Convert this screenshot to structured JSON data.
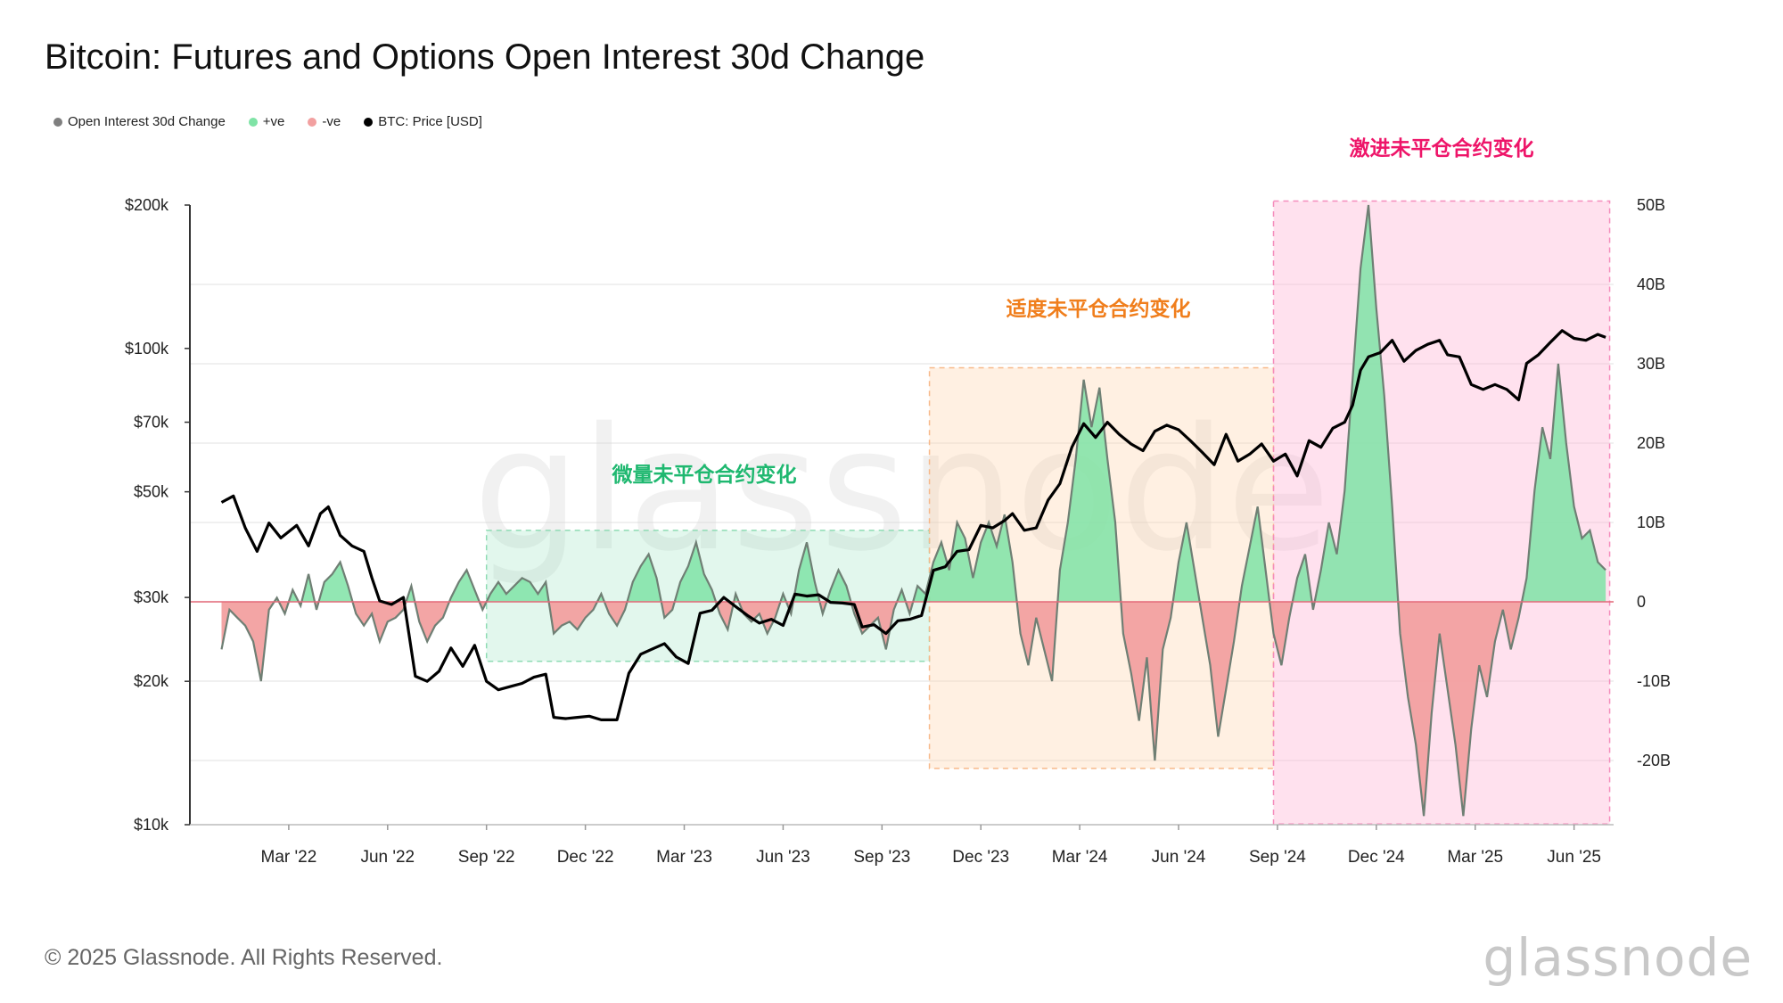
{
  "title": "Bitcoin: Futures and Options Open Interest 30d Change",
  "legend": [
    {
      "label": "Open Interest 30d Change",
      "color": "#7f7f7f"
    },
    {
      "label": "+ve",
      "color": "#7fe3a6"
    },
    {
      "label": "-ve",
      "color": "#f2a0a0"
    },
    {
      "label": "BTC: Price [USD]",
      "color": "#000000"
    }
  ],
  "footer": "© 2025 Glassnode. All Rights Reserved.",
  "brand": "glassnode",
  "watermark": "glassnode",
  "chart_data": {
    "type": "area",
    "x_ticks": [
      "Mar '22",
      "Jun '22",
      "Sep '22",
      "Dec '22",
      "Mar '23",
      "Jun '23",
      "Sep '23",
      "Dec '23",
      "Mar '24",
      "Jun '24",
      "Sep '24",
      "Dec '24",
      "Mar '25",
      "Jun '25"
    ],
    "x_range": [
      2021.92,
      2025.52
    ],
    "left_axis": {
      "label": "BTC: Price [USD]",
      "scale": "log",
      "range": [
        10000,
        200000
      ],
      "ticks": [
        {
          "v": 10000,
          "t": "$10k"
        },
        {
          "v": 20000,
          "t": "$20k"
        },
        {
          "v": 30000,
          "t": "$30k"
        },
        {
          "v": 50000,
          "t": "$50k"
        },
        {
          "v": 70000,
          "t": "$70k"
        },
        {
          "v": 100000,
          "t": "$100k"
        },
        {
          "v": 200000,
          "t": "$200k"
        }
      ]
    },
    "right_axis": {
      "label": "Open Interest 30d Change",
      "range": [
        -28000000000,
        50000000000
      ],
      "ticks": [
        {
          "v": -20000000000,
          "t": "-20B"
        },
        {
          "v": -10000000000,
          "t": "-10B"
        },
        {
          "v": 0,
          "t": "0"
        },
        {
          "v": 10000000000,
          "t": "10B"
        },
        {
          "v": 20000000000,
          "t": "20B"
        },
        {
          "v": 30000000000,
          "t": "30B"
        },
        {
          "v": 40000000000,
          "t": "40B"
        },
        {
          "v": 50000000000,
          "t": "50B"
        }
      ]
    },
    "regions": [
      {
        "label": "微量未平仓合约变化",
        "x0": 2022.67,
        "x1": 2023.79,
        "y0": 9000000000,
        "y1": -7500000000,
        "fill": "rgba(140,225,185,0.25)",
        "stroke": "#8fdcb4",
        "text_color": "#1fb870"
      },
      {
        "label": "适度未平仓合约变化",
        "x0": 2023.79,
        "x1": 2024.66,
        "y0": 29500000000,
        "y1": -21000000000,
        "fill": "rgba(255,205,160,0.30)",
        "stroke": "#f7b98a",
        "text_color": "#f07e1c"
      },
      {
        "label": "激进未平仓合约变化",
        "x0": 2024.66,
        "x1": 2025.51,
        "y0": 50500000000,
        "y1": -28000000000,
        "fill": "rgba(255,175,210,0.38)",
        "stroke": "#f58cbc",
        "text_color": "#ee1569"
      }
    ],
    "btc_price": [
      [
        2022.0,
        47500
      ],
      [
        2022.03,
        49000
      ],
      [
        2022.06,
        42000
      ],
      [
        2022.09,
        37500
      ],
      [
        2022.12,
        43000
      ],
      [
        2022.15,
        40000
      ],
      [
        2022.19,
        42500
      ],
      [
        2022.22,
        38500
      ],
      [
        2022.25,
        45000
      ],
      [
        2022.27,
        46500
      ],
      [
        2022.3,
        40500
      ],
      [
        2022.33,
        38500
      ],
      [
        2022.36,
        37500
      ],
      [
        2022.38,
        33000
      ],
      [
        2022.4,
        29500
      ],
      [
        2022.43,
        29000
      ],
      [
        2022.46,
        30000
      ],
      [
        2022.49,
        20500
      ],
      [
        2022.52,
        20000
      ],
      [
        2022.55,
        21000
      ],
      [
        2022.58,
        23500
      ],
      [
        2022.61,
        21500
      ],
      [
        2022.64,
        23800
      ],
      [
        2022.67,
        20000
      ],
      [
        2022.7,
        19200
      ],
      [
        2022.73,
        19500
      ],
      [
        2022.76,
        19800
      ],
      [
        2022.79,
        20400
      ],
      [
        2022.82,
        20700
      ],
      [
        2022.84,
        16800
      ],
      [
        2022.87,
        16700
      ],
      [
        2022.9,
        16800
      ],
      [
        2022.93,
        16900
      ],
      [
        2022.96,
        16600
      ],
      [
        2023.0,
        16600
      ],
      [
        2023.03,
        20800
      ],
      [
        2023.06,
        22800
      ],
      [
        2023.09,
        23400
      ],
      [
        2023.12,
        24000
      ],
      [
        2023.15,
        22500
      ],
      [
        2023.18,
        21800
      ],
      [
        2023.21,
        27800
      ],
      [
        2023.24,
        28200
      ],
      [
        2023.27,
        30000
      ],
      [
        2023.3,
        28700
      ],
      [
        2023.33,
        27500
      ],
      [
        2023.36,
        26500
      ],
      [
        2023.39,
        27000
      ],
      [
        2023.42,
        26200
      ],
      [
        2023.45,
        30500
      ],
      [
        2023.48,
        30200
      ],
      [
        2023.51,
        30400
      ],
      [
        2023.54,
        29300
      ],
      [
        2023.57,
        29200
      ],
      [
        2023.6,
        29000
      ],
      [
        2023.62,
        26000
      ],
      [
        2023.65,
        26300
      ],
      [
        2023.68,
        25200
      ],
      [
        2023.71,
        26800
      ],
      [
        2023.74,
        27000
      ],
      [
        2023.77,
        27500
      ],
      [
        2023.8,
        34200
      ],
      [
        2023.83,
        34800
      ],
      [
        2023.86,
        37500
      ],
      [
        2023.89,
        37800
      ],
      [
        2023.92,
        42500
      ],
      [
        2023.95,
        42000
      ],
      [
        2023.98,
        43500
      ],
      [
        2024.0,
        45000
      ],
      [
        2024.03,
        41500
      ],
      [
        2024.06,
        42000
      ],
      [
        2024.09,
        48000
      ],
      [
        2024.12,
        52000
      ],
      [
        2024.15,
        62000
      ],
      [
        2024.18,
        69500
      ],
      [
        2024.21,
        65000
      ],
      [
        2024.24,
        70000
      ],
      [
        2024.27,
        66000
      ],
      [
        2024.3,
        63000
      ],
      [
        2024.33,
        61000
      ],
      [
        2024.36,
        67000
      ],
      [
        2024.39,
        69000
      ],
      [
        2024.42,
        67500
      ],
      [
        2024.45,
        64000
      ],
      [
        2024.48,
        60500
      ],
      [
        2024.51,
        57000
      ],
      [
        2024.54,
        66000
      ],
      [
        2024.57,
        58000
      ],
      [
        2024.6,
        60000
      ],
      [
        2024.63,
        63000
      ],
      [
        2024.66,
        58000
      ],
      [
        2024.69,
        60000
      ],
      [
        2024.72,
        54000
      ],
      [
        2024.75,
        64000
      ],
      [
        2024.78,
        62000
      ],
      [
        2024.81,
        68000
      ],
      [
        2024.84,
        70000
      ],
      [
        2024.86,
        76000
      ],
      [
        2024.88,
        90000
      ],
      [
        2024.9,
        96000
      ],
      [
        2024.93,
        98000
      ],
      [
        2024.96,
        104000
      ],
      [
        2024.99,
        94000
      ],
      [
        2025.02,
        99000
      ],
      [
        2025.05,
        102000
      ],
      [
        2025.08,
        104000
      ],
      [
        2025.1,
        97000
      ],
      [
        2025.13,
        96000
      ],
      [
        2025.16,
        84000
      ],
      [
        2025.19,
        82000
      ],
      [
        2025.22,
        84000
      ],
      [
        2025.25,
        82000
      ],
      [
        2025.28,
        78000
      ],
      [
        2025.3,
        93000
      ],
      [
        2025.33,
        97000
      ],
      [
        2025.36,
        103000
      ],
      [
        2025.39,
        109000
      ],
      [
        2025.42,
        105000
      ],
      [
        2025.45,
        104000
      ],
      [
        2025.48,
        107000
      ],
      [
        2025.5,
        105500
      ]
    ],
    "oi_change": [
      [
        2022.0,
        -6000000000
      ],
      [
        2022.02,
        -1000000000
      ],
      [
        2022.04,
        -2000000000
      ],
      [
        2022.06,
        -3000000000
      ],
      [
        2022.08,
        -5000000000
      ],
      [
        2022.1,
        -10000000000
      ],
      [
        2022.12,
        -1000000000
      ],
      [
        2022.14,
        500000000
      ],
      [
        2022.16,
        -1500000000
      ],
      [
        2022.18,
        1500000000
      ],
      [
        2022.2,
        -500000000
      ],
      [
        2022.22,
        3500000000
      ],
      [
        2022.24,
        -1000000000
      ],
      [
        2022.26,
        2500000000
      ],
      [
        2022.28,
        3500000000
      ],
      [
        2022.3,
        5000000000
      ],
      [
        2022.32,
        2000000000
      ],
      [
        2022.34,
        -1500000000
      ],
      [
        2022.36,
        -3000000000
      ],
      [
        2022.38,
        -1500000000
      ],
      [
        2022.4,
        -5000000000
      ],
      [
        2022.42,
        -2500000000
      ],
      [
        2022.44,
        -2000000000
      ],
      [
        2022.46,
        -1000000000
      ],
      [
        2022.48,
        2000000000
      ],
      [
        2022.5,
        -2500000000
      ],
      [
        2022.52,
        -5000000000
      ],
      [
        2022.54,
        -3000000000
      ],
      [
        2022.56,
        -2000000000
      ],
      [
        2022.58,
        500000000
      ],
      [
        2022.6,
        2500000000
      ],
      [
        2022.62,
        4000000000
      ],
      [
        2022.64,
        1500000000
      ],
      [
        2022.66,
        -1000000000
      ],
      [
        2022.68,
        1000000000
      ],
      [
        2022.7,
        2500000000
      ],
      [
        2022.72,
        1000000000
      ],
      [
        2022.74,
        2000000000
      ],
      [
        2022.76,
        3000000000
      ],
      [
        2022.78,
        2500000000
      ],
      [
        2022.8,
        1000000000
      ],
      [
        2022.82,
        2500000000
      ],
      [
        2022.84,
        -4000000000
      ],
      [
        2022.86,
        -3000000000
      ],
      [
        2022.88,
        -2500000000
      ],
      [
        2022.9,
        -3500000000
      ],
      [
        2022.92,
        -2000000000
      ],
      [
        2022.94,
        -1000000000
      ],
      [
        2022.96,
        1000000000
      ],
      [
        2022.98,
        -1500000000
      ],
      [
        2023.0,
        -3000000000
      ],
      [
        2023.02,
        -1000000000
      ],
      [
        2023.04,
        2500000000
      ],
      [
        2023.06,
        4500000000
      ],
      [
        2023.08,
        6000000000
      ],
      [
        2023.1,
        3000000000
      ],
      [
        2023.12,
        -2000000000
      ],
      [
        2023.14,
        -1000000000
      ],
      [
        2023.16,
        2500000000
      ],
      [
        2023.18,
        4500000000
      ],
      [
        2023.2,
        7500000000
      ],
      [
        2023.22,
        3500000000
      ],
      [
        2023.24,
        1500000000
      ],
      [
        2023.26,
        -1500000000
      ],
      [
        2023.28,
        -3500000000
      ],
      [
        2023.3,
        1000000000
      ],
      [
        2023.32,
        -1500000000
      ],
      [
        2023.34,
        -2500000000
      ],
      [
        2023.36,
        -1500000000
      ],
      [
        2023.38,
        -4000000000
      ],
      [
        2023.4,
        -2000000000
      ],
      [
        2023.42,
        1000000000
      ],
      [
        2023.44,
        -1500000000
      ],
      [
        2023.46,
        4000000000
      ],
      [
        2023.48,
        7500000000
      ],
      [
        2023.5,
        2500000000
      ],
      [
        2023.52,
        -1500000000
      ],
      [
        2023.54,
        1500000000
      ],
      [
        2023.56,
        4000000000
      ],
      [
        2023.58,
        2000000000
      ],
      [
        2023.6,
        -1500000000
      ],
      [
        2023.62,
        -4000000000
      ],
      [
        2023.64,
        -3000000000
      ],
      [
        2023.66,
        -2000000000
      ],
      [
        2023.68,
        -6000000000
      ],
      [
        2023.7,
        -1000000000
      ],
      [
        2023.72,
        1500000000
      ],
      [
        2023.74,
        -1500000000
      ],
      [
        2023.76,
        2000000000
      ],
      [
        2023.78,
        1000000000
      ],
      [
        2023.8,
        5000000000
      ],
      [
        2023.82,
        7500000000
      ],
      [
        2023.84,
        4000000000
      ],
      [
        2023.86,
        10000000000
      ],
      [
        2023.88,
        8000000000
      ],
      [
        2023.9,
        3000000000
      ],
      [
        2023.92,
        7500000000
      ],
      [
        2023.94,
        10000000000
      ],
      [
        2023.96,
        7000000000
      ],
      [
        2023.98,
        11000000000
      ],
      [
        2024.0,
        5000000000
      ],
      [
        2024.02,
        -4000000000
      ],
      [
        2024.04,
        -8000000000
      ],
      [
        2024.06,
        -2000000000
      ],
      [
        2024.08,
        -6000000000
      ],
      [
        2024.1,
        -10000000000
      ],
      [
        2024.12,
        4000000000
      ],
      [
        2024.14,
        10000000000
      ],
      [
        2024.16,
        18000000000
      ],
      [
        2024.18,
        28000000000
      ],
      [
        2024.2,
        22000000000
      ],
      [
        2024.22,
        27000000000
      ],
      [
        2024.24,
        18000000000
      ],
      [
        2024.26,
        10000000000
      ],
      [
        2024.28,
        -4000000000
      ],
      [
        2024.3,
        -9000000000
      ],
      [
        2024.32,
        -15000000000
      ],
      [
        2024.34,
        -7000000000
      ],
      [
        2024.36,
        -20000000000
      ],
      [
        2024.38,
        -6000000000
      ],
      [
        2024.4,
        -2000000000
      ],
      [
        2024.42,
        5000000000
      ],
      [
        2024.44,
        10000000000
      ],
      [
        2024.46,
        4000000000
      ],
      [
        2024.48,
        -2000000000
      ],
      [
        2024.5,
        -8000000000
      ],
      [
        2024.52,
        -17000000000
      ],
      [
        2024.54,
        -11000000000
      ],
      [
        2024.56,
        -5000000000
      ],
      [
        2024.58,
        2000000000
      ],
      [
        2024.6,
        7000000000
      ],
      [
        2024.62,
        12000000000
      ],
      [
        2024.64,
        4000000000
      ],
      [
        2024.66,
        -4000000000
      ],
      [
        2024.68,
        -8000000000
      ],
      [
        2024.7,
        -2000000000
      ],
      [
        2024.72,
        3000000000
      ],
      [
        2024.74,
        6000000000
      ],
      [
        2024.76,
        -1000000000
      ],
      [
        2024.78,
        4000000000
      ],
      [
        2024.8,
        10000000000
      ],
      [
        2024.82,
        6000000000
      ],
      [
        2024.84,
        14000000000
      ],
      [
        2024.86,
        28000000000
      ],
      [
        2024.88,
        42000000000
      ],
      [
        2024.9,
        50000000000
      ],
      [
        2024.92,
        37000000000
      ],
      [
        2024.94,
        26000000000
      ],
      [
        2024.96,
        12000000000
      ],
      [
        2024.98,
        -4000000000
      ],
      [
        2025.0,
        -12000000000
      ],
      [
        2025.02,
        -18000000000
      ],
      [
        2025.04,
        -27000000000
      ],
      [
        2025.06,
        -14000000000
      ],
      [
        2025.08,
        -4000000000
      ],
      [
        2025.1,
        -11000000000
      ],
      [
        2025.12,
        -18000000000
      ],
      [
        2025.14,
        -27000000000
      ],
      [
        2025.16,
        -16000000000
      ],
      [
        2025.18,
        -8000000000
      ],
      [
        2025.2,
        -12000000000
      ],
      [
        2025.22,
        -5000000000
      ],
      [
        2025.24,
        -1000000000
      ],
      [
        2025.26,
        -6000000000
      ],
      [
        2025.28,
        -2000000000
      ],
      [
        2025.3,
        3000000000
      ],
      [
        2025.32,
        14000000000
      ],
      [
        2025.34,
        22000000000
      ],
      [
        2025.36,
        18000000000
      ],
      [
        2025.38,
        30000000000
      ],
      [
        2025.4,
        20000000000
      ],
      [
        2025.42,
        12000000000
      ],
      [
        2025.44,
        8000000000
      ],
      [
        2025.46,
        9000000000
      ],
      [
        2025.48,
        5000000000
      ],
      [
        2025.5,
        4000000000
      ]
    ]
  }
}
